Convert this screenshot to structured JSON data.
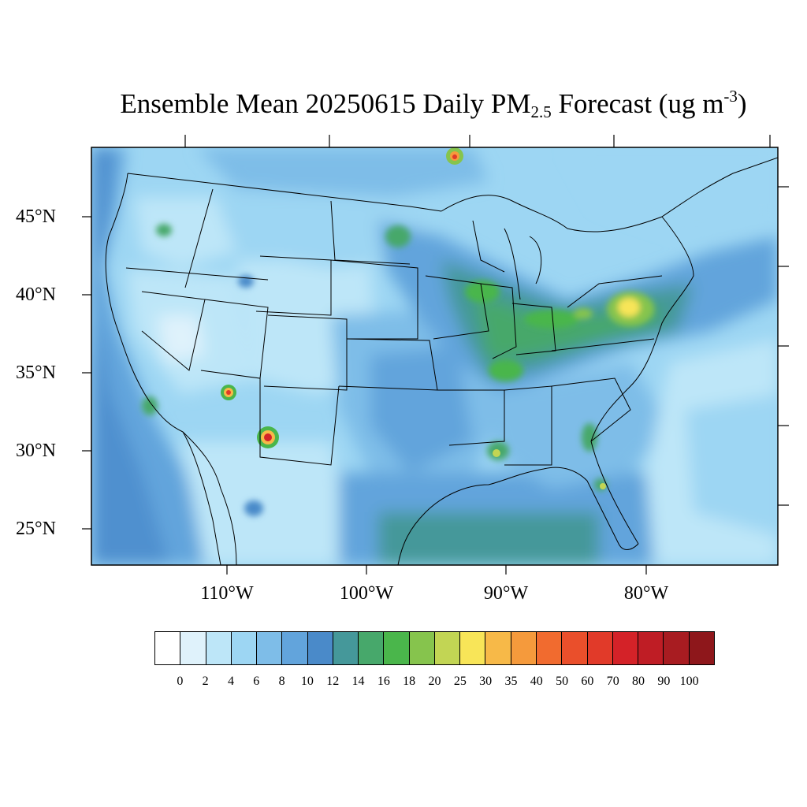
{
  "title": {
    "main": "Ensemble Mean 20250615 Daily PM",
    "sub": "2.5",
    "after_sub": " Forecast (ug m",
    "sup": "-3",
    "close": ")"
  },
  "map": {
    "type": "filled-contour map",
    "region": "Contiguous United States",
    "lat_labels": [
      "45°N",
      "40°N",
      "35°N",
      "30°N",
      "25°N"
    ],
    "lon_labels": [
      "110°W",
      "100°W",
      "90°W",
      "80°W"
    ]
  },
  "colorbar": {
    "colors": [
      "#ffffff",
      "#dff2fb",
      "#bde6f8",
      "#9dd6f3",
      "#7ebde8",
      "#62a4dc",
      "#4a8ac9",
      "#45989a",
      "#47a86b",
      "#4ab64b",
      "#86c44d",
      "#c2d554",
      "#f8e558",
      "#f7b948",
      "#f59a3c",
      "#f16b2f",
      "#ea4f2b",
      "#e13a29",
      "#d42228",
      "#bf1d25",
      "#a81c21",
      "#8e171b"
    ],
    "labels": [
      "0",
      "2",
      "4",
      "6",
      "8",
      "10",
      "12",
      "14",
      "16",
      "18",
      "20",
      "25",
      "30",
      "35",
      "40",
      "50",
      "60",
      "70",
      "80",
      "90",
      "100"
    ]
  }
}
